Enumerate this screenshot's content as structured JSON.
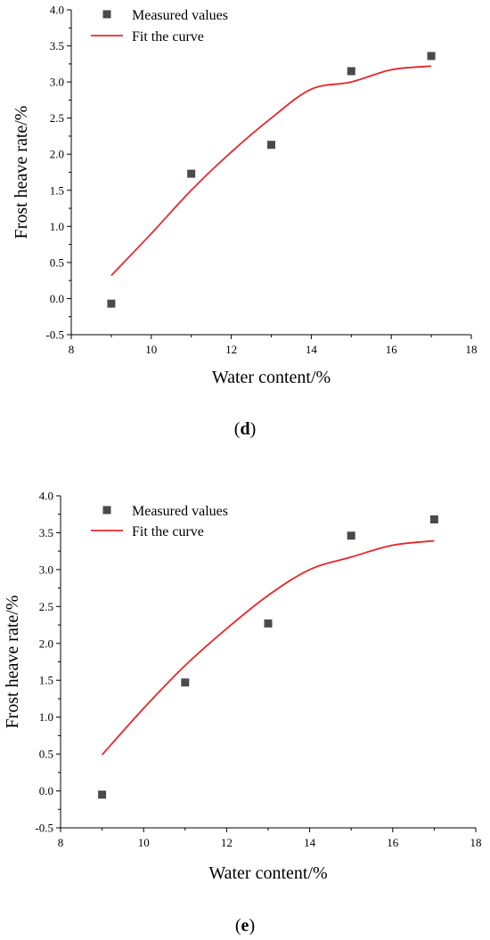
{
  "chart_data": [
    {
      "type": "scatter",
      "panel_label": "d",
      "xlabel": "Water content/%",
      "ylabel": "Frost heave rate/%",
      "xlim": [
        8,
        18
      ],
      "ylim": [
        -0.5,
        4.0
      ],
      "xticks": [
        "8",
        "10",
        "12",
        "14",
        "16",
        "18"
      ],
      "yticks": [
        "-0.5",
        "0.0",
        "0.5",
        "1.0",
        "1.5",
        "2.0",
        "2.5",
        "3.0",
        "3.5",
        "4.0"
      ],
      "grid": false,
      "legend": {
        "position": "top-left",
        "entries": [
          "Measured values",
          "Fit the curve"
        ]
      },
      "series": [
        {
          "name": "Measured values",
          "kind": "scatter",
          "color": "#4a4a4a",
          "points": [
            [
              9,
              -0.07
            ],
            [
              11,
              1.73
            ],
            [
              13,
              2.13
            ],
            [
              15,
              3.15
            ],
            [
              17,
              3.36
            ]
          ]
        },
        {
          "name": "Fit the curve",
          "kind": "line",
          "color": "#e8262a",
          "points": [
            [
              9,
              0.32
            ],
            [
              10,
              0.9
            ],
            [
              11,
              1.5
            ],
            [
              12,
              2.03
            ],
            [
              13,
              2.5
            ],
            [
              14,
              2.9
            ],
            [
              15,
              3.0
            ],
            [
              16,
              3.17
            ],
            [
              17,
              3.22
            ]
          ]
        }
      ]
    },
    {
      "type": "scatter",
      "panel_label": "e",
      "xlabel": "Water content/%",
      "ylabel": "Frost heave rate/%",
      "xlim": [
        8,
        18
      ],
      "ylim": [
        -0.5,
        4.0
      ],
      "xticks": [
        "8",
        "10",
        "12",
        "14",
        "16",
        "18"
      ],
      "yticks": [
        "-0.5",
        "0.0",
        "0.5",
        "1.0",
        "1.5",
        "2.0",
        "2.5",
        "3.0",
        "3.5",
        "4.0"
      ],
      "grid": false,
      "legend": {
        "position": "top-left",
        "entries": [
          "Measured values",
          "Fit the curve"
        ]
      },
      "series": [
        {
          "name": "Measured values",
          "kind": "scatter",
          "color": "#4a4a4a",
          "points": [
            [
              9,
              -0.05
            ],
            [
              11,
              1.47
            ],
            [
              13,
              2.27
            ],
            [
              15,
              3.46
            ],
            [
              17,
              3.68
            ]
          ]
        },
        {
          "name": "Fit the curve",
          "kind": "line",
          "color": "#e8262a",
          "points": [
            [
              9,
              0.49
            ],
            [
              10,
              1.12
            ],
            [
              11,
              1.7
            ],
            [
              12,
              2.2
            ],
            [
              13,
              2.65
            ],
            [
              14,
              3.0
            ],
            [
              15,
              3.17
            ],
            [
              16,
              3.33
            ],
            [
              17,
              3.39
            ]
          ]
        }
      ]
    }
  ]
}
